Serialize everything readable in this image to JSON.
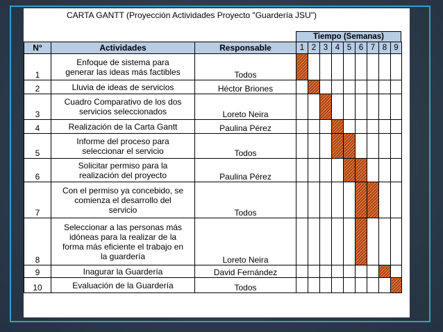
{
  "title": "CARTA GANTT (Proyección Actividades Proyecto \"Guardería JSU\")",
  "time_header": "Tiempo (Semanas)",
  "columns": {
    "num": "N°",
    "activity": "Actividades",
    "responsible": "Responsable"
  },
  "weeks": [
    "1",
    "2",
    "3",
    "4",
    "5",
    "6",
    "7",
    "8",
    "9"
  ],
  "rows": [
    {
      "num": "1",
      "activity": "Enfoque de sistema para\ngenerar las ideas más factibles",
      "responsible": "Todos",
      "weeks": [
        1
      ]
    },
    {
      "num": "2",
      "activity": "Lluvia de ideas de servicios",
      "responsible": "Héctor Briones",
      "weeks": [
        2
      ]
    },
    {
      "num": "3",
      "activity": "Cuadro Comparativo de los dos\nservicios seleccionados",
      "responsible": "Loreto Neira",
      "weeks": [
        3
      ]
    },
    {
      "num": "4",
      "activity": "Realización de la Carta Gantt",
      "responsible": "Paulina Pérez",
      "weeks": [
        4
      ]
    },
    {
      "num": "5",
      "activity": "Informe del proceso para\nseleccionar el servicio",
      "responsible": "Todos",
      "weeks": [
        4,
        5
      ]
    },
    {
      "num": "6",
      "activity": "Solicitar permiso para la\nrealización del proyecto",
      "responsible": "Paulina Pérez",
      "weeks": [
        5,
        6
      ]
    },
    {
      "num": "7",
      "activity": "Con el permiso ya concebido, se\ncomienza el desarrollo del\nservicio",
      "responsible": "Todos",
      "weeks": [
        6,
        7
      ]
    },
    {
      "num": "8",
      "activity": "Seleccionar a las personas más\nidóneas para la realizar de la\nforma más eficiente el trabajo en\nla guardería",
      "responsible": "Loreto Neira",
      "weeks": [
        6
      ]
    },
    {
      "num": "9",
      "activity": "Inagurar la Guardería",
      "responsible": "David Fernández",
      "weeks": [
        8
      ]
    },
    {
      "num": "10",
      "activity": "Evaluación de la Guardería",
      "responsible": "Todos",
      "weeks": [
        9
      ]
    }
  ],
  "colors": {
    "header_bg": "#b8cce4",
    "bar": "#e36c2e",
    "frame": "#2e9fc8"
  }
}
